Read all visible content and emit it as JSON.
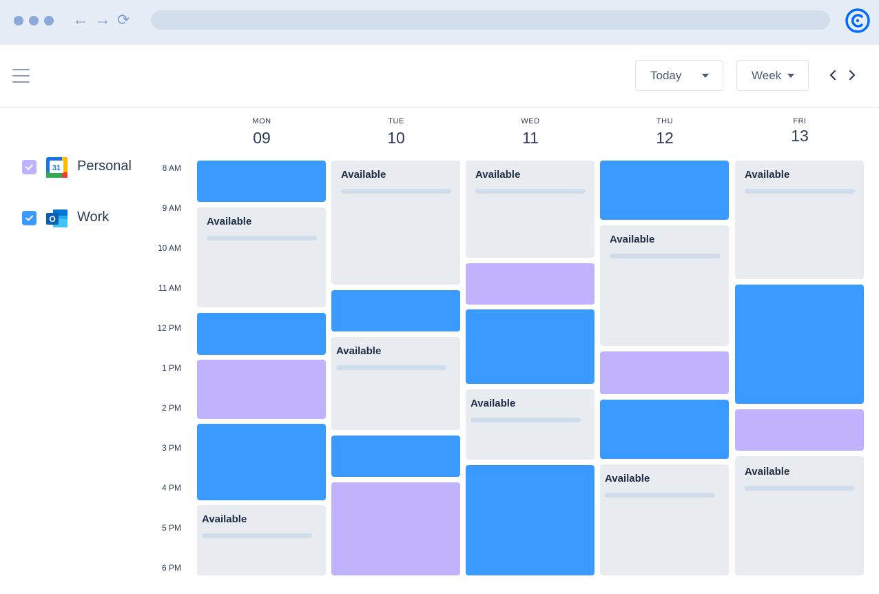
{
  "browser": {
    "window_dots": [
      "dot",
      "dot",
      "dot"
    ],
    "back_icon": "←",
    "forward_icon": "→",
    "reload_icon": "⟳",
    "url": "",
    "logo_icon": "calendly-logo",
    "accent": "#0069ff"
  },
  "toolbar": {
    "menu_icon": "hamburger-icon",
    "today_label": "Today",
    "view_label": "Week",
    "prev_icon": "chevron-left-icon",
    "next_icon": "chevron-right-icon"
  },
  "calendars": [
    {
      "label": "Personal",
      "icon": "google-calendar-icon",
      "icon_text": "31",
      "checked": true,
      "color": "#c1b2fd"
    },
    {
      "label": "Work",
      "icon": "outlook-icon",
      "icon_text": "O",
      "checked": true,
      "color": "#3a9aff"
    }
  ],
  "times": [
    "8 AM",
    "9 AM",
    "10 AM",
    "11 AM",
    "12 PM",
    "1 PM",
    "2 PM",
    "3 PM",
    "4 PM",
    "5 PM",
    "6 PM"
  ],
  "days": [
    {
      "dow": "MON",
      "num": "09"
    },
    {
      "dow": "TUE",
      "num": "10"
    },
    {
      "dow": "WED",
      "num": "11"
    },
    {
      "dow": "THU",
      "num": "12"
    },
    {
      "dow": "FRI",
      "num": "13"
    }
  ],
  "available_label": "Available",
  "colors": {
    "work_event": "#3a9aff",
    "personal_event": "#c1b2fd",
    "available_block": "#e8ecf1",
    "text": "#2b3a55"
  }
}
